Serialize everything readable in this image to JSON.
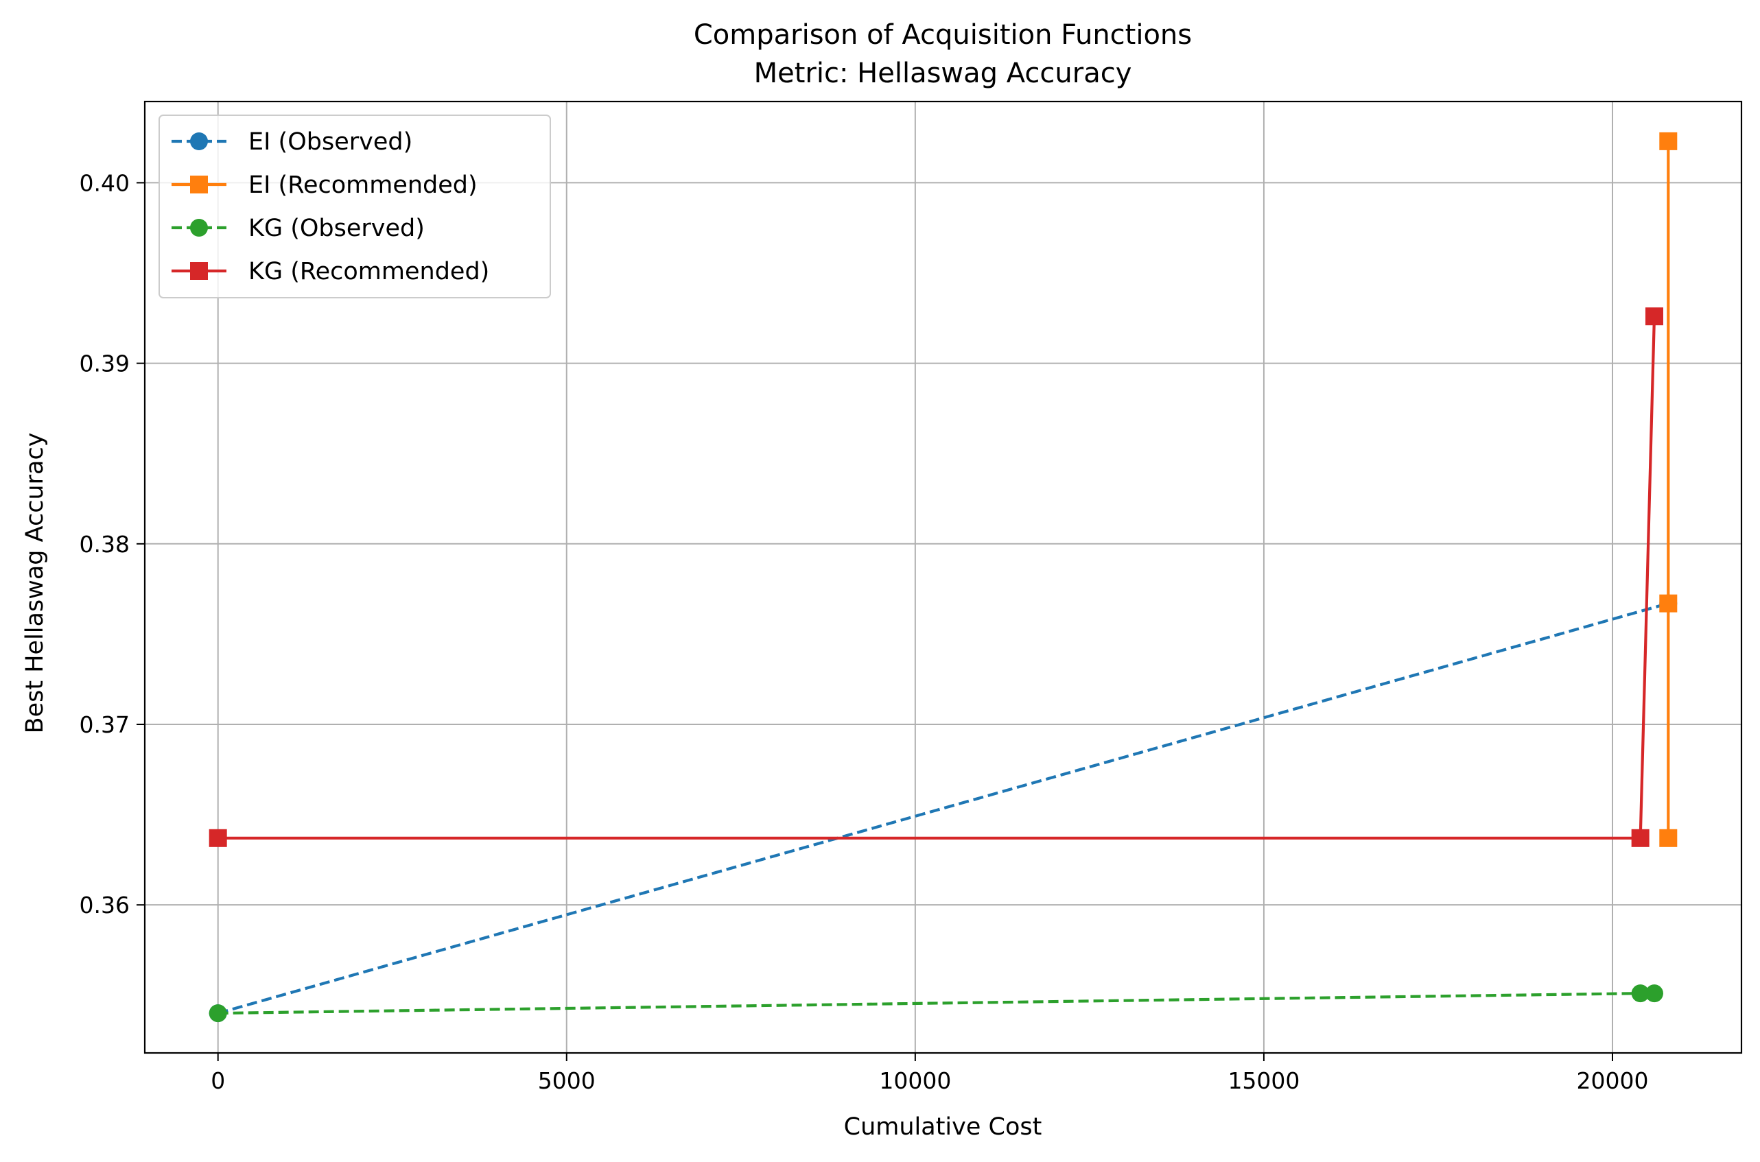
{
  "chart_data": {
    "type": "line",
    "title": "Comparison of Acquisition Functions",
    "subtitle": "Metric: Hellaswag Accuracy",
    "xlabel": "Cumulative Cost",
    "ylabel": "Best Hellaswag Accuracy",
    "xlim": [
      -1050,
      21850
    ],
    "ylim": [
      0.3518,
      0.4045
    ],
    "xticks": [
      0,
      5000,
      10000,
      15000,
      20000
    ],
    "xtick_labels": [
      "0",
      "5000",
      "10000",
      "15000",
      "20000"
    ],
    "yticks": [
      0.36,
      0.37,
      0.38,
      0.39,
      0.4
    ],
    "ytick_labels": [
      "0.36",
      "0.37",
      "0.38",
      "0.39",
      "0.40"
    ],
    "grid": true,
    "legend_position": "top-left",
    "series": [
      {
        "name": "EI (Observed)",
        "color": "#1f77b4",
        "linestyle": "dashed",
        "marker": "circle",
        "x": [
          0,
          20800
        ],
        "y": [
          0.354,
          0.3767
        ]
      },
      {
        "name": "EI (Recommended)",
        "color": "#ff7f0e",
        "linestyle": "solid",
        "marker": "square",
        "x": [
          20800,
          20800,
          20800
        ],
        "y": [
          0.3637,
          0.3767,
          0.4023
        ]
      },
      {
        "name": "KG (Observed)",
        "color": "#2ca02c",
        "linestyle": "dashed",
        "marker": "circle",
        "x": [
          0,
          20400,
          20600
        ],
        "y": [
          0.354,
          0.3551,
          0.3551
        ]
      },
      {
        "name": "KG (Recommended)",
        "color": "#d62728",
        "linestyle": "solid",
        "marker": "square",
        "x": [
          0,
          20400,
          20600
        ],
        "y": [
          0.3637,
          0.3637,
          0.3926
        ]
      }
    ]
  }
}
